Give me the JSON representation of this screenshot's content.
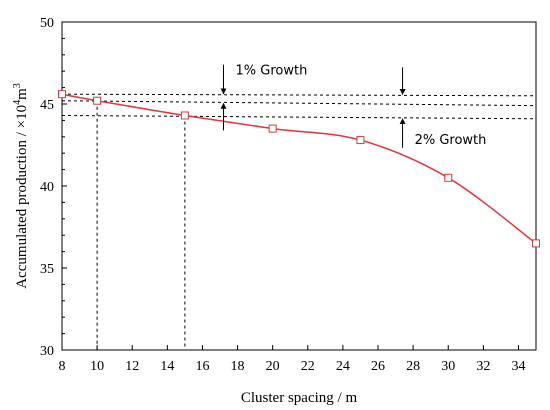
{
  "chart_data": {
    "type": "line",
    "title": "",
    "xlabel": "Cluster spacing / m",
    "ylabel_parts": {
      "before": "Accumulated production / ×10",
      "sup": "4",
      "after": "m",
      "sup2": "3"
    },
    "xlim": [
      8,
      35
    ],
    "ylim": [
      30,
      50
    ],
    "x_ticks": [
      8,
      10,
      12,
      14,
      16,
      18,
      20,
      22,
      24,
      26,
      28,
      30,
      32,
      34
    ],
    "y_ticks": [
      30,
      35,
      40,
      45,
      50
    ],
    "grid": false,
    "legend": "none",
    "series": [
      {
        "color": "#e8323c",
        "marker": "square",
        "marker_color": "#d23c3c",
        "points": [
          {
            "x": 8,
            "y": 45.6
          },
          {
            "x": 10,
            "y": 45.2
          },
          {
            "x": 15,
            "y": 44.3
          },
          {
            "x": 20,
            "y": 43.5
          },
          {
            "x": 25,
            "y": 42.8
          },
          {
            "x": 30,
            "y": 40.5
          },
          {
            "x": 35,
            "y": 36.5
          }
        ]
      }
    ],
    "reference_lines": {
      "horizontal_y": [
        45.6,
        45.2,
        44.3
      ],
      "vertical_x": [
        10,
        15
      ],
      "right_end_y": [
        45.5,
        44.9,
        44.1
      ]
    },
    "annotations": [
      {
        "text": "1% Growth",
        "arrow_x": 17.2
      },
      {
        "text": "2% Growth",
        "arrow_x": 27.4
      }
    ]
  }
}
